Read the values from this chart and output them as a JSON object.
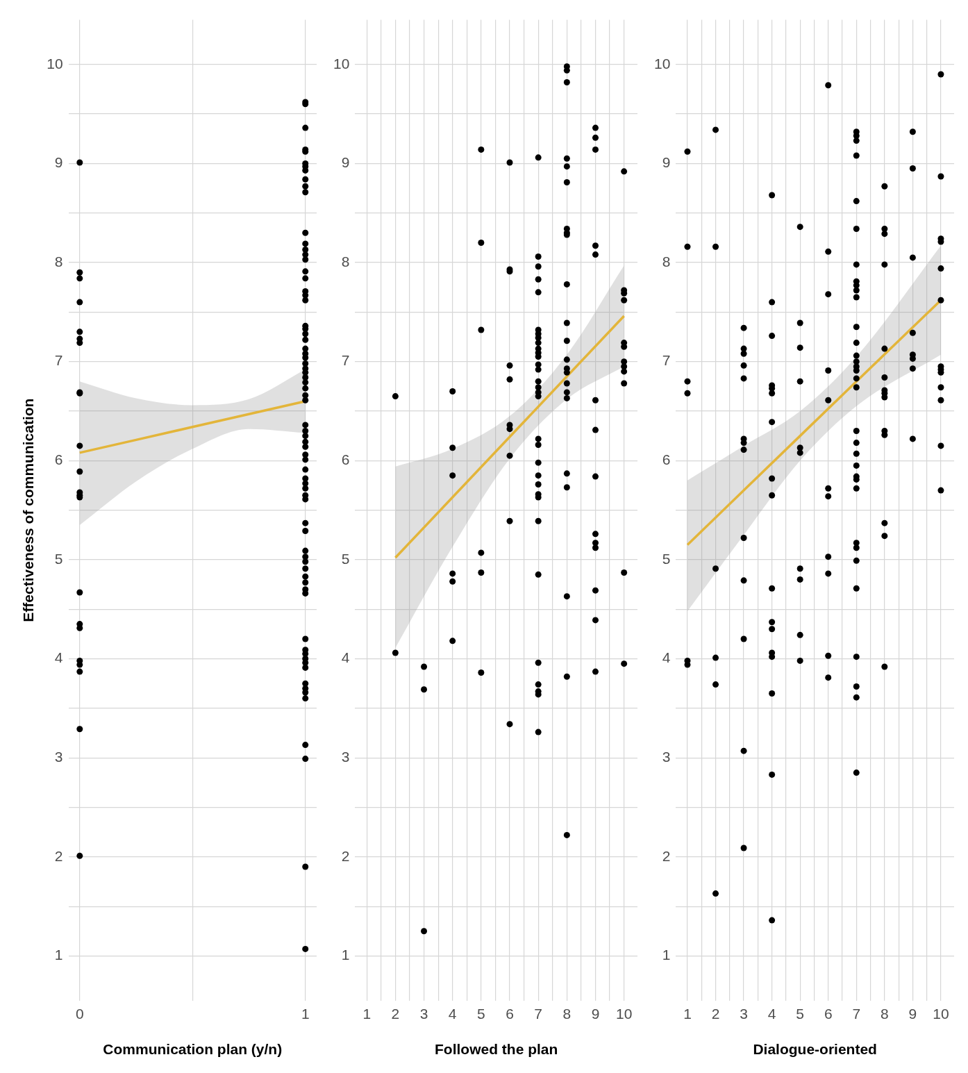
{
  "chart_data": [
    {
      "type": "scatter",
      "xlabel": "Communication plan (y/n)",
      "ylabel": "Effectiveness of communication",
      "xlim": [
        -0.05,
        1.05
      ],
      "xticks": [
        0,
        {
          "value": 0.5,
          "label": null
        },
        1
      ],
      "ylim": [
        0.55,
        10.45
      ],
      "yticks": [
        1,
        {
          "value": 1.5,
          "label": null
        },
        2,
        {
          "value": 2.5,
          "label": null
        },
        3,
        {
          "value": 3.5,
          "label": null
        },
        4,
        {
          "value": 4.5,
          "label": null
        },
        5,
        {
          "value": 5.5,
          "label": null
        },
        6,
        {
          "value": 6.5,
          "label": null
        },
        7,
        {
          "value": 7.5,
          "label": null
        },
        8,
        {
          "value": 8.5,
          "label": null
        },
        9,
        {
          "value": 9.5,
          "label": null
        },
        10
      ],
      "grid": true,
      "marker": "circle",
      "series": [
        {
          "color": "#000000",
          "x": [
            0,
            0,
            0,
            0,
            0,
            0,
            0,
            0,
            0,
            0,
            0,
            0,
            0,
            0,
            0,
            0,
            0,
            0,
            0,
            0,
            0,
            0,
            1,
            1,
            1,
            1,
            1,
            1,
            1,
            1,
            1,
            1,
            1,
            1,
            1,
            1,
            1,
            1,
            1,
            1,
            1,
            1,
            1,
            1,
            1,
            1,
            1,
            1,
            1,
            1,
            1,
            1,
            1,
            1,
            1,
            1,
            1,
            1,
            1,
            1,
            1,
            1,
            1,
            1,
            1,
            1,
            1,
            1,
            1,
            1,
            1,
            1,
            1,
            1,
            1,
            1,
            1,
            1,
            1,
            1,
            1,
            1,
            1,
            1,
            1,
            1,
            1,
            1,
            1,
            1,
            1,
            1,
            1,
            1,
            1
          ],
          "values": [
            9.01,
            7.9,
            7.84,
            7.6,
            7.3,
            7.23,
            7.19,
            6.69,
            6.68,
            6.15,
            5.89,
            5.68,
            5.65,
            5.63,
            4.67,
            4.35,
            4.31,
            3.98,
            3.94,
            3.87,
            3.29,
            2.01,
            9.62,
            9.6,
            9.36,
            9.14,
            9.12,
            9.0,
            8.97,
            8.93,
            8.84,
            8.77,
            8.71,
            8.3,
            8.19,
            8.13,
            8.08,
            8.03,
            7.91,
            7.84,
            7.71,
            7.67,
            7.62,
            7.36,
            7.33,
            7.28,
            7.22,
            7.13,
            7.08,
            7.04,
            6.98,
            6.93,
            6.89,
            6.84,
            6.79,
            6.73,
            6.66,
            6.61,
            6.36,
            6.3,
            6.25,
            6.19,
            6.14,
            6.06,
            6.01,
            5.91,
            5.82,
            5.77,
            5.72,
            5.65,
            5.61,
            5.37,
            5.29,
            5.09,
            5.03,
            4.98,
            4.91,
            4.83,
            4.77,
            4.7,
            4.66,
            4.2,
            4.09,
            4.05,
            4.0,
            3.96,
            3.91,
            3.75,
            3.7,
            3.66,
            3.6,
            3.13,
            2.99,
            1.9,
            1.07
          ]
        },
        {
          "type": "line",
          "marker": "none",
          "color": "#e3b53a",
          "x": [
            0,
            0.25,
            0.5,
            0.75,
            1
          ],
          "values": [
            6.08,
            6.21,
            6.34,
            6.47,
            6.6
          ],
          "lower": [
            5.35,
            5.79,
            6.12,
            6.32,
            6.28
          ],
          "upper": [
            6.8,
            6.63,
            6.56,
            6.62,
            6.92
          ]
        }
      ]
    },
    {
      "type": "scatter",
      "xlabel": "Followed the plan",
      "xlim": [
        0.59,
        10.47
      ],
      "xticks": [
        1,
        {
          "value": 1.5,
          "label": null
        },
        2,
        {
          "value": 2.5,
          "label": null
        },
        3,
        {
          "value": 3.5,
          "label": null
        },
        4,
        {
          "value": 4.5,
          "label": null
        },
        5,
        {
          "value": 5.5,
          "label": null
        },
        6,
        {
          "value": 6.5,
          "label": null
        },
        7,
        {
          "value": 7.5,
          "label": null
        },
        8,
        {
          "value": 8.5,
          "label": null
        },
        9,
        {
          "value": 9.5,
          "label": null
        },
        10
      ],
      "ylim": [
        0.55,
        10.45
      ],
      "yticks": [
        1,
        {
          "value": 1.5,
          "label": null
        },
        2,
        {
          "value": 2.5,
          "label": null
        },
        3,
        {
          "value": 3.5,
          "label": null
        },
        4,
        {
          "value": 4.5,
          "label": null
        },
        5,
        {
          "value": 5.5,
          "label": null
        },
        6,
        {
          "value": 6.5,
          "label": null
        },
        7,
        {
          "value": 7.5,
          "label": null
        },
        8,
        {
          "value": 8.5,
          "label": null
        },
        9,
        {
          "value": 9.5,
          "label": null
        },
        10
      ],
      "grid": true,
      "marker": "circle",
      "series": [
        {
          "color": "#000000",
          "x": [
            2,
            2,
            3,
            3,
            3,
            4,
            4,
            4,
            4,
            4,
            4,
            5,
            5,
            5,
            5,
            5,
            5,
            6,
            6,
            6,
            6,
            6,
            6,
            6,
            6,
            6,
            6,
            7,
            7,
            7,
            7,
            7,
            7,
            7,
            7,
            7,
            7,
            7,
            7,
            7,
            7,
            7,
            7,
            7,
            7,
            7,
            7,
            7,
            7,
            7,
            7,
            7,
            7,
            7,
            7,
            7,
            7,
            7,
            7,
            8,
            8,
            8,
            8,
            8,
            8,
            8,
            8,
            8,
            8,
            8,
            8,
            8,
            8,
            8,
            8,
            8,
            8,
            8,
            8,
            8,
            8,
            8,
            9,
            9,
            9,
            9,
            9,
            9,
            9,
            9,
            9,
            9,
            9,
            9,
            9,
            9,
            10,
            10,
            10,
            10,
            10,
            10,
            10,
            10,
            10,
            10,
            10,
            10
          ],
          "values": [
            6.65,
            4.06,
            3.92,
            3.69,
            1.25,
            6.7,
            6.13,
            5.85,
            4.86,
            4.78,
            4.18,
            9.14,
            8.2,
            7.32,
            5.07,
            4.87,
            3.86,
            9.01,
            7.93,
            7.91,
            6.96,
            6.82,
            6.36,
            6.32,
            6.05,
            5.39,
            3.34,
            9.06,
            8.06,
            7.96,
            7.83,
            7.7,
            7.32,
            7.28,
            7.24,
            7.19,
            7.13,
            7.09,
            7.05,
            6.97,
            6.92,
            6.8,
            6.74,
            6.69,
            6.65,
            6.22,
            6.16,
            5.98,
            5.85,
            5.76,
            5.66,
            5.63,
            5.39,
            4.85,
            3.96,
            3.74,
            3.67,
            3.64,
            3.26,
            9.98,
            9.94,
            9.82,
            9.05,
            8.97,
            8.81,
            8.34,
            8.3,
            8.28,
            7.78,
            7.39,
            7.21,
            7.02,
            6.93,
            6.89,
            6.78,
            6.69,
            6.63,
            5.87,
            5.73,
            4.63,
            3.82,
            2.22,
            9.36,
            9.26,
            9.14,
            8.17,
            8.08,
            6.61,
            6.31,
            5.84,
            5.26,
            5.17,
            5.12,
            4.69,
            4.39,
            3.87,
            8.92,
            7.72,
            7.69,
            7.62,
            7.19,
            7.15,
            7.0,
            6.95,
            6.9,
            6.78,
            4.87,
            3.95
          ]
        },
        {
          "type": "line",
          "marker": "none",
          "color": "#e3b53a",
          "x": [
            2,
            4,
            6,
            8,
            10
          ],
          "values": [
            5.02,
            5.63,
            6.24,
            6.85,
            7.46
          ],
          "lower": [
            4.11,
            5.13,
            6.02,
            6.62,
            6.95
          ],
          "upper": [
            5.94,
            6.12,
            6.45,
            7.07,
            7.97
          ]
        }
      ]
    },
    {
      "type": "scatter",
      "xlabel": "Dialogue-oriented",
      "xlim": [
        0.59,
        10.47
      ],
      "xticks": [
        1,
        {
          "value": 1.5,
          "label": null
        },
        2,
        {
          "value": 2.5,
          "label": null
        },
        3,
        {
          "value": 3.5,
          "label": null
        },
        4,
        {
          "value": 4.5,
          "label": null
        },
        5,
        {
          "value": 5.5,
          "label": null
        },
        6,
        {
          "value": 6.5,
          "label": null
        },
        7,
        {
          "value": 7.5,
          "label": null
        },
        8,
        {
          "value": 8.5,
          "label": null
        },
        9,
        {
          "value": 9.5,
          "label": null
        },
        10
      ],
      "ylim": [
        0.55,
        10.45
      ],
      "yticks": [
        1,
        {
          "value": 1.5,
          "label": null
        },
        2,
        {
          "value": 2.5,
          "label": null
        },
        3,
        {
          "value": 3.5,
          "label": null
        },
        4,
        {
          "value": 4.5,
          "label": null
        },
        5,
        {
          "value": 5.5,
          "label": null
        },
        6,
        {
          "value": 6.5,
          "label": null
        },
        7,
        {
          "value": 7.5,
          "label": null
        },
        8,
        {
          "value": 8.5,
          "label": null
        },
        9,
        {
          "value": 9.5,
          "label": null
        },
        10
      ],
      "grid": true,
      "marker": "circle",
      "series": [
        {
          "color": "#000000",
          "x": [
            1,
            1,
            1,
            1,
            1,
            1,
            2,
            2,
            2,
            2,
            2,
            2,
            3,
            3,
            3,
            3,
            3,
            3,
            3,
            3,
            3,
            3,
            3,
            3,
            3,
            4,
            4,
            4,
            4,
            4,
            4,
            4,
            4,
            4,
            4,
            4,
            4,
            4,
            4,
            4,
            4,
            4,
            5,
            5,
            5,
            5,
            5,
            5,
            5,
            5,
            5,
            5,
            6,
            6,
            6,
            6,
            6,
            6,
            6,
            6,
            6,
            6,
            6,
            7,
            7,
            7,
            7,
            7,
            7,
            7,
            7,
            7,
            7,
            7,
            7,
            7,
            7,
            7,
            7,
            7,
            7,
            7,
            7,
            7,
            7,
            7,
            7,
            7,
            7,
            7,
            7,
            7,
            7,
            7,
            7,
            7,
            7,
            8,
            8,
            8,
            8,
            8,
            8,
            8,
            8,
            8,
            8,
            8,
            8,
            8,
            8,
            9,
            9,
            9,
            9,
            9,
            9,
            9,
            9,
            10,
            10,
            10,
            10,
            10,
            10,
            10,
            10,
            10,
            10,
            10,
            10,
            10
          ],
          "values": [
            9.12,
            8.16,
            6.8,
            6.68,
            3.98,
            3.94,
            9.34,
            8.16,
            4.91,
            4.01,
            3.74,
            1.63,
            7.34,
            7.13,
            7.08,
            6.96,
            6.83,
            6.22,
            6.18,
            6.11,
            5.22,
            4.79,
            4.2,
            3.07,
            2.09,
            8.68,
            7.6,
            7.26,
            6.76,
            6.73,
            6.68,
            6.39,
            5.82,
            5.65,
            4.71,
            4.37,
            4.3,
            4.06,
            4.02,
            3.65,
            2.83,
            1.36,
            8.36,
            7.39,
            7.14,
            6.8,
            6.13,
            6.08,
            4.91,
            4.8,
            4.24,
            3.98,
            9.79,
            8.11,
            7.68,
            6.91,
            6.61,
            5.72,
            5.64,
            5.03,
            4.86,
            4.03,
            3.81,
            9.32,
            9.28,
            9.23,
            9.08,
            8.62,
            8.34,
            7.98,
            7.81,
            7.77,
            7.72,
            7.65,
            7.35,
            7.19,
            7.06,
            7.0,
            6.95,
            6.91,
            6.83,
            6.74,
            6.3,
            6.18,
            6.07,
            5.95,
            5.84,
            5.81,
            5.72,
            5.17,
            5.12,
            4.99,
            4.71,
            4.02,
            3.72,
            3.61,
            2.85,
            8.77,
            8.34,
            8.29,
            7.98,
            7.13,
            6.84,
            6.71,
            6.68,
            6.64,
            6.3,
            6.26,
            5.37,
            5.24,
            3.92,
            9.32,
            8.95,
            8.05,
            7.29,
            7.07,
            7.03,
            6.93,
            6.22,
            9.9,
            8.87,
            8.24,
            8.21,
            7.94,
            7.62,
            6.95,
            6.92,
            6.89,
            6.74,
            6.61,
            6.15,
            5.7
          ]
        },
        {
          "type": "line",
          "marker": "none",
          "color": "#e3b53a",
          "x": [
            1,
            3,
            5,
            7,
            10
          ],
          "values": [
            5.15,
            5.7,
            6.25,
            6.8,
            7.62
          ],
          "lower": [
            4.48,
            5.25,
            6.0,
            6.55,
            7.07
          ],
          "upper": [
            5.8,
            6.15,
            6.5,
            7.05,
            8.17
          ]
        }
      ]
    }
  ]
}
